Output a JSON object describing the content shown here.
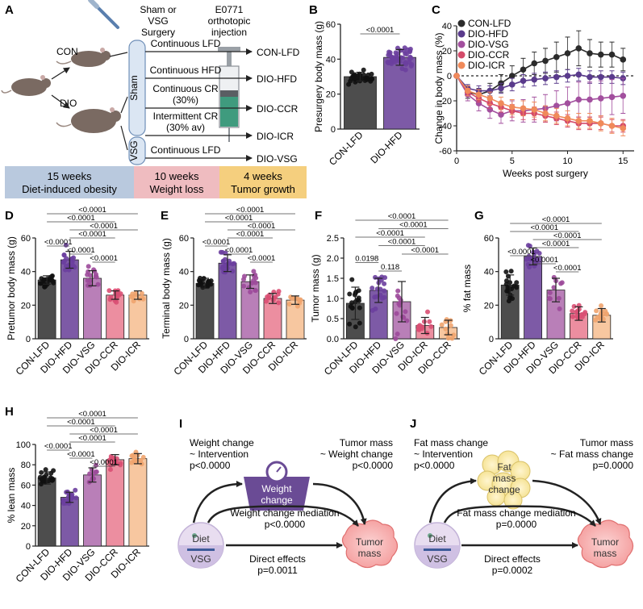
{
  "panel_letters": {
    "a": "A",
    "b": "B",
    "c": "C",
    "d": "D",
    "e": "E",
    "f": "F",
    "g": "G",
    "h": "H",
    "i": "I",
    "j": "J"
  },
  "schematic": {
    "surgery_label": "Sham or\nVSG\nSurgery",
    "injection_label": "E0771\northotopic\ninjection",
    "con_label": "CON",
    "dio_label": "DIO",
    "sham_label": "Sham",
    "vsg_label": "VSG",
    "arms": [
      {
        "diet": "Continuous LFD",
        "group": "CON-LFD"
      },
      {
        "diet": "Continuous HFD",
        "group": "DIO-HFD"
      },
      {
        "diet": "Continuous CR\n(30%)",
        "group": "DIO-CCR"
      },
      {
        "diet": "Intermittent CR\n(30% av)",
        "group": "DIO-ICR"
      },
      {
        "diet": "Continuous LFD",
        "group": "DIO-VSG"
      }
    ],
    "timeline": [
      {
        "duration": "15 weeks",
        "phase": "Diet-induced obesity",
        "color": "#b9c9de"
      },
      {
        "duration": "10 weeks",
        "phase": "Weight loss",
        "color": "#efbcc0"
      },
      {
        "duration": "4 weeks",
        "phase": "Tumor growth",
        "color": "#f5cf7e"
      }
    ]
  },
  "mediation": {
    "I": {
      "a_path": "Weight change\n~ Intervention\np<0.0000",
      "b_path": "Tumor mass\n~ Weight change\np<0.0000",
      "mediator": "Weight\nchange",
      "mediation": "Weight change mediation\np<0.0000",
      "direct": "Direct effects\np=0.0011",
      "exposure_top": "Diet",
      "exposure_bottom": "VSG",
      "outcome": "Tumor\nmass"
    },
    "J": {
      "a_path": "Fat mass change\n~ Intervention\np<0.0000",
      "b_path": "Tumor mass\n~ Fat mass change\np=0.0000",
      "mediator": "Fat\nmass\nchange",
      "mediation": "Fat mass change mediation\np=0.0000",
      "direct": "Direct effects\np=0.0002",
      "exposure_top": "Diet",
      "exposure_bottom": "VSG",
      "outcome": "Tumor\nmass"
    }
  },
  "chart_data": [
    {
      "id": "B",
      "type": "bar",
      "ylabel": "Presurgery body mass (g)",
      "ylim": [
        0,
        60
      ],
      "yticks": [
        0,
        20,
        40,
        60
      ],
      "categories": [
        "CON-LFD",
        "DIO-HFD"
      ],
      "values": [
        30,
        41
      ],
      "errors": [
        2.5,
        4.5
      ],
      "colors": [
        "#4d4d4d",
        "#7d5aa6"
      ],
      "point_colors": [
        "#111111",
        "#6b3f9e"
      ],
      "n_points": [
        32,
        48
      ],
      "comparisons": [
        {
          "from": 0,
          "to": 1,
          "p": "<0.0001"
        }
      ]
    },
    {
      "id": "C",
      "type": "line",
      "xlabel": "Weeks post surgery",
      "ylabel": "Change in body mass (%)",
      "xlim": [
        0,
        16
      ],
      "ylim": [
        -60,
        40
      ],
      "xticks": [
        0,
        5,
        10,
        15
      ],
      "yticks": [
        -60,
        -40,
        -20,
        0,
        20,
        40
      ],
      "reference_y": 0,
      "x": [
        0,
        1,
        2,
        3,
        4,
        5,
        6,
        7,
        8,
        9,
        10,
        11,
        12,
        13,
        14,
        15
      ],
      "series": [
        {
          "name": "CON-LFD",
          "color": "#2b2b2b",
          "values": [
            0,
            -13,
            -15,
            -12,
            -6,
            0,
            5,
            10,
            12,
            15,
            18,
            22,
            18,
            17,
            17,
            13
          ],
          "errors": [
            0,
            5,
            5,
            6,
            7,
            8,
            9,
            9,
            10,
            12,
            13,
            14,
            11,
            10,
            10,
            9
          ]
        },
        {
          "name": "DIO-HFD",
          "color": "#5a3b8c",
          "values": [
            0,
            -10,
            -12,
            -12,
            -10,
            -7,
            -4,
            -3,
            -2,
            -1,
            0,
            1,
            -1,
            -1,
            -1,
            -2
          ],
          "errors": [
            0,
            3,
            4,
            4,
            4,
            5,
            5,
            5,
            5,
            5,
            5,
            5,
            5,
            5,
            5,
            5
          ]
        },
        {
          "name": "DIO-VSG",
          "color": "#a24f9e",
          "values": [
            0,
            -15,
            -22,
            -27,
            -31,
            -28,
            -28,
            -27,
            -26,
            -24,
            -22,
            -19,
            -19,
            -18,
            -17,
            -16
          ],
          "errors": [
            0,
            5,
            6,
            7,
            7,
            8,
            9,
            10,
            11,
            12,
            13,
            14,
            14,
            14,
            14,
            14
          ]
        },
        {
          "name": "DIO-CCR",
          "color": "#d44b6a",
          "values": [
            0,
            -13,
            -18,
            -22,
            -25,
            -28,
            -30,
            -30,
            -32,
            -34,
            -36,
            -38,
            -38,
            -38,
            -40,
            -40
          ],
          "errors": [
            0,
            3,
            3,
            4,
            4,
            5,
            5,
            5,
            5,
            5,
            5,
            5,
            5,
            5,
            5,
            5
          ]
        },
        {
          "name": "DIO-ICR",
          "color": "#f08a5a",
          "values": [
            0,
            -12,
            -15,
            -18,
            -22,
            -25,
            -26,
            -27,
            -30,
            -32,
            -34,
            -36,
            -36,
            -38,
            -40,
            -42
          ],
          "errors": [
            0,
            4,
            4,
            5,
            5,
            6,
            6,
            6,
            6,
            6,
            6,
            6,
            6,
            6,
            6,
            6
          ]
        }
      ]
    },
    {
      "id": "D",
      "type": "bar",
      "ylabel": "Pretumor body mass (g)",
      "ylim": [
        0,
        60
      ],
      "yticks": [
        0,
        20,
        40,
        60
      ],
      "categories": [
        "CON-LFD",
        "DIO-HFD",
        "DIO-VSG",
        "DIO-CCR",
        "DIO-ICR"
      ],
      "values": [
        35,
        47,
        36,
        26,
        26
      ],
      "errors": [
        2.5,
        5,
        4.5,
        2.5,
        2.5
      ],
      "colors": [
        "#4d4d4d",
        "#7d5aa6",
        "#b97fb8",
        "#ec8ea0",
        "#f7c7a0"
      ],
      "point_colors": [
        "#111111",
        "#6b3f9e",
        "#9c4a9a",
        "#d94f73",
        "#f0a46e"
      ],
      "n_points": [
        20,
        20,
        14,
        14,
        10
      ],
      "comparisons": [
        {
          "from": 0,
          "to": 1,
          "p": "<0.0001"
        },
        {
          "from": 1,
          "to": 2,
          "p": "<0.0001"
        },
        {
          "from": 1,
          "to": 3,
          "p": "<0.0001"
        },
        {
          "from": 0,
          "to": 3,
          "p": "<0.0001"
        },
        {
          "from": 1,
          "to": 4,
          "p": "<0.0001"
        },
        {
          "from": 0,
          "to": 4,
          "p": "<0.0001"
        },
        {
          "from": 2,
          "to": 3,
          "p": "<0.0001"
        }
      ]
    },
    {
      "id": "E",
      "type": "bar",
      "ylabel": "Terminal body mass (g)",
      "ylim": [
        0,
        60
      ],
      "yticks": [
        0,
        20,
        40,
        60
      ],
      "categories": [
        "CON-LFD",
        "DIO-HFD",
        "DIO-VSG",
        "DIO-CCR",
        "DIO-ICR"
      ],
      "values": [
        33,
        45,
        34,
        24,
        23
      ],
      "errors": [
        3,
        5,
        4,
        3,
        2.5
      ],
      "colors": [
        "#4d4d4d",
        "#7d5aa6",
        "#b97fb8",
        "#ec8ea0",
        "#f7c7a0"
      ],
      "point_colors": [
        "#111111",
        "#6b3f9e",
        "#9c4a9a",
        "#d94f73",
        "#f0a46e"
      ],
      "n_points": [
        20,
        20,
        14,
        12,
        10
      ],
      "comparisons": [
        {
          "from": 0,
          "to": 1,
          "p": "<0.0001"
        },
        {
          "from": 1,
          "to": 2,
          "p": "<0.0001"
        },
        {
          "from": 1,
          "to": 3,
          "p": "<0.0001"
        },
        {
          "from": 0,
          "to": 3,
          "p": "<0.0001"
        },
        {
          "from": 1,
          "to": 4,
          "p": "<0.0001"
        },
        {
          "from": 0,
          "to": 4,
          "p": "<0.0001"
        },
        {
          "from": 2,
          "to": 3,
          "p": "<0.0001"
        }
      ]
    },
    {
      "id": "F",
      "type": "bar",
      "ylabel": "Tumor mass (g)",
      "ylim": [
        0,
        2.5
      ],
      "yticks": [
        0.0,
        0.5,
        1.0,
        1.5,
        2.0,
        2.5
      ],
      "tick_decimals": 1,
      "categories": [
        "CON-LFD",
        "DIO-HFD",
        "DIO-VSG",
        "DIO-ICR",
        "DIO-CCR"
      ],
      "values": [
        0.88,
        1.2,
        0.92,
        0.33,
        0.28
      ],
      "errors": [
        0.4,
        0.3,
        0.5,
        0.2,
        0.18
      ],
      "colors": [
        "#4d4d4d",
        "#7d5aa6",
        "#b97fb8",
        "#ec8ea0",
        "#f7c7a0"
      ],
      "point_colors": [
        "#111111",
        "#6b3f9e",
        "#9c4a9a",
        "#d94f73",
        "#f0a46e"
      ],
      "n_points": [
        18,
        18,
        14,
        12,
        10
      ],
      "comparisons": [
        {
          "from": 0,
          "to": 1,
          "p": "0.0198"
        },
        {
          "from": 1,
          "to": 2,
          "p": "0.118"
        },
        {
          "from": 1,
          "to": 3,
          "p": "<0.0001"
        },
        {
          "from": 1,
          "to": 4,
          "p": "<0.0001"
        },
        {
          "from": 0,
          "to": 3,
          "p": "<0.0001"
        },
        {
          "from": 0,
          "to": 4,
          "p": "<0.0001"
        },
        {
          "from": 2,
          "to": 4,
          "p": "<0.0001"
        }
      ]
    },
    {
      "id": "G",
      "type": "bar",
      "ylabel": "% fat mass",
      "ylim": [
        0,
        60
      ],
      "yticks": [
        0,
        20,
        40,
        60
      ],
      "categories": [
        "CON-LFD",
        "DIO-HFD",
        "DIO-VSG",
        "DIO-CCR",
        "DIO-ICR"
      ],
      "values": [
        32,
        49,
        29,
        15,
        14
      ],
      "errors": [
        6,
        5,
        7,
        4,
        4
      ],
      "colors": [
        "#4d4d4d",
        "#7d5aa6",
        "#b97fb8",
        "#ec8ea0",
        "#f7c7a0"
      ],
      "point_colors": [
        "#111111",
        "#6b3f9e",
        "#9c4a9a",
        "#d94f73",
        "#f0a46e"
      ],
      "n_points": [
        18,
        18,
        10,
        14,
        14
      ],
      "comparisons": [
        {
          "from": 0,
          "to": 1,
          "p": "<0.0001"
        },
        {
          "from": 1,
          "to": 2,
          "p": "<0.0001"
        },
        {
          "from": 1,
          "to": 3,
          "p": "<0.0001"
        },
        {
          "from": 0,
          "to": 3,
          "p": "<0.0001"
        },
        {
          "from": 1,
          "to": 4,
          "p": "<0.0001"
        },
        {
          "from": 0,
          "to": 4,
          "p": "<0.0001"
        },
        {
          "from": 2,
          "to": 3,
          "p": "<0.0001"
        }
      ]
    },
    {
      "id": "H",
      "type": "bar",
      "ylabel": "% lean mass",
      "ylim": [
        0,
        100
      ],
      "yticks": [
        0,
        20,
        40,
        60,
        80,
        100
      ],
      "categories": [
        "CON-LFD",
        "DIO-HFD",
        "DIO-VSG",
        "DIO-CCR",
        "DIO-ICR"
      ],
      "values": [
        67,
        48,
        70,
        85,
        86
      ],
      "errors": [
        6,
        5,
        7,
        5,
        5
      ],
      "colors": [
        "#4d4d4d",
        "#7d5aa6",
        "#b97fb8",
        "#ec8ea0",
        "#f7c7a0"
      ],
      "point_colors": [
        "#111111",
        "#6b3f9e",
        "#9c4a9a",
        "#d94f73",
        "#f0a46e"
      ],
      "n_points": [
        20,
        20,
        10,
        14,
        12
      ],
      "comparisons": [
        {
          "from": 0,
          "to": 1,
          "p": "<0.0001"
        },
        {
          "from": 1,
          "to": 2,
          "p": "<0.0001"
        },
        {
          "from": 1,
          "to": 3,
          "p": "<0.0001"
        },
        {
          "from": 0,
          "to": 3,
          "p": "<0.0001"
        },
        {
          "from": 1,
          "to": 4,
          "p": "<0.0001"
        },
        {
          "from": 0,
          "to": 4,
          "p": "<0.0001"
        },
        {
          "from": 2,
          "to": 3,
          "p": "<0.0001"
        }
      ]
    }
  ]
}
